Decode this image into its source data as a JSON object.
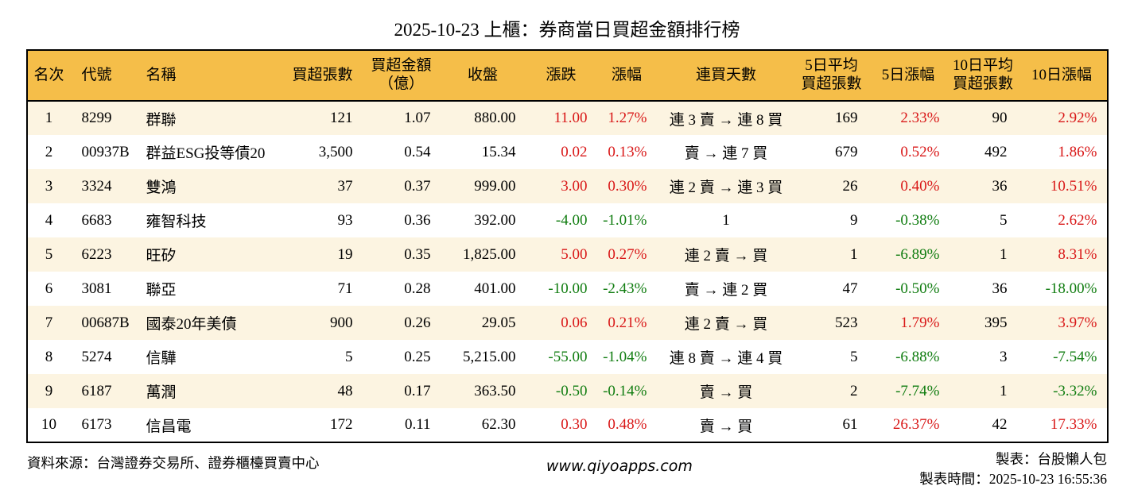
{
  "title": "2025-10-23 上櫃：券商當日買超金額排行榜",
  "colors": {
    "up": "#d91818",
    "down": "#117d11",
    "header_bg": "#f5be49",
    "row_alt": "#fcf4e1",
    "border": "#000000"
  },
  "table": {
    "columns": [
      {
        "label": "名次"
      },
      {
        "label": "代號"
      },
      {
        "label": "名稱"
      },
      {
        "label": "買超張數"
      },
      {
        "label": "買超金額\n（億）"
      },
      {
        "label": "收盤"
      },
      {
        "label": "漲跌"
      },
      {
        "label": "漲幅"
      },
      {
        "label": "連買天數"
      },
      {
        "label": "5日平均\n買超張數"
      },
      {
        "label": "5日漲幅"
      },
      {
        "label": "10日平均\n買超張數"
      },
      {
        "label": "10日漲幅"
      }
    ],
    "rows": [
      {
        "rank": "1",
        "code": "8299",
        "name": "群聯",
        "buy_volume": "121",
        "buy_amount": "1.07",
        "close": "880.00",
        "change": "11.00",
        "change_dir": "up",
        "change_pct": "1.27%",
        "streak": "連 3 賣 → 連 8 買",
        "avg5": "169",
        "pct5": "2.33%",
        "pct5_dir": "up",
        "avg10": "90",
        "pct10": "2.92%",
        "pct10_dir": "up"
      },
      {
        "rank": "2",
        "code": "00937B",
        "name": "群益ESG投等債20",
        "buy_volume": "3,500",
        "buy_amount": "0.54",
        "close": "15.34",
        "change": "0.02",
        "change_dir": "up",
        "change_pct": "0.13%",
        "streak": "賣 → 連 7 買",
        "avg5": "679",
        "pct5": "0.52%",
        "pct5_dir": "up",
        "avg10": "492",
        "pct10": "1.86%",
        "pct10_dir": "up"
      },
      {
        "rank": "3",
        "code": "3324",
        "name": "雙鴻",
        "buy_volume": "37",
        "buy_amount": "0.37",
        "close": "999.00",
        "change": "3.00",
        "change_dir": "up",
        "change_pct": "0.30%",
        "streak": "連 2 賣 → 連 3 買",
        "avg5": "26",
        "pct5": "0.40%",
        "pct5_dir": "up",
        "avg10": "36",
        "pct10": "10.51%",
        "pct10_dir": "up"
      },
      {
        "rank": "4",
        "code": "6683",
        "name": "雍智科技",
        "buy_volume": "93",
        "buy_amount": "0.36",
        "close": "392.00",
        "change": "-4.00",
        "change_dir": "down",
        "change_pct": "-1.01%",
        "streak": "1",
        "avg5": "9",
        "pct5": "-0.38%",
        "pct5_dir": "down",
        "avg10": "5",
        "pct10": "2.62%",
        "pct10_dir": "up"
      },
      {
        "rank": "5",
        "code": "6223",
        "name": "旺矽",
        "buy_volume": "19",
        "buy_amount": "0.35",
        "close": "1,825.00",
        "change": "5.00",
        "change_dir": "up",
        "change_pct": "0.27%",
        "streak": "連 2 賣 → 買",
        "avg5": "1",
        "pct5": "-6.89%",
        "pct5_dir": "down",
        "avg10": "1",
        "pct10": "8.31%",
        "pct10_dir": "up"
      },
      {
        "rank": "6",
        "code": "3081",
        "name": "聯亞",
        "buy_volume": "71",
        "buy_amount": "0.28",
        "close": "401.00",
        "change": "-10.00",
        "change_dir": "down",
        "change_pct": "-2.43%",
        "streak": "賣 → 連 2 買",
        "avg5": "47",
        "pct5": "-0.50%",
        "pct5_dir": "down",
        "avg10": "36",
        "pct10": "-18.00%",
        "pct10_dir": "down"
      },
      {
        "rank": "7",
        "code": "00687B",
        "name": "國泰20年美債",
        "buy_volume": "900",
        "buy_amount": "0.26",
        "close": "29.05",
        "change": "0.06",
        "change_dir": "up",
        "change_pct": "0.21%",
        "streak": "連 2 賣 → 買",
        "avg5": "523",
        "pct5": "1.79%",
        "pct5_dir": "up",
        "avg10": "395",
        "pct10": "3.97%",
        "pct10_dir": "up"
      },
      {
        "rank": "8",
        "code": "5274",
        "name": "信驊",
        "buy_volume": "5",
        "buy_amount": "0.25",
        "close": "5,215.00",
        "change": "-55.00",
        "change_dir": "down",
        "change_pct": "-1.04%",
        "streak": "連 8 賣 → 連 4 買",
        "avg5": "5",
        "pct5": "-6.88%",
        "pct5_dir": "down",
        "avg10": "3",
        "pct10": "-7.54%",
        "pct10_dir": "down"
      },
      {
        "rank": "9",
        "code": "6187",
        "name": "萬潤",
        "buy_volume": "48",
        "buy_amount": "0.17",
        "close": "363.50",
        "change": "-0.50",
        "change_dir": "down",
        "change_pct": "-0.14%",
        "streak": "賣 → 買",
        "avg5": "2",
        "pct5": "-7.74%",
        "pct5_dir": "down",
        "avg10": "1",
        "pct10": "-3.32%",
        "pct10_dir": "down"
      },
      {
        "rank": "10",
        "code": "6173",
        "name": "信昌電",
        "buy_volume": "172",
        "buy_amount": "0.11",
        "close": "62.30",
        "change": "0.30",
        "change_dir": "up",
        "change_pct": "0.48%",
        "streak": "賣 → 買",
        "avg5": "61",
        "pct5": "26.37%",
        "pct5_dir": "up",
        "avg10": "42",
        "pct10": "17.33%",
        "pct10_dir": "up"
      }
    ]
  },
  "footer": {
    "source": "資料來源：台灣證券交易所、證券櫃檯買賣中心",
    "website": "www.qiyoapps.com",
    "credit": "製表：台股懶人包",
    "created_at": "製表時間：2025-10-23 16:55:36"
  }
}
